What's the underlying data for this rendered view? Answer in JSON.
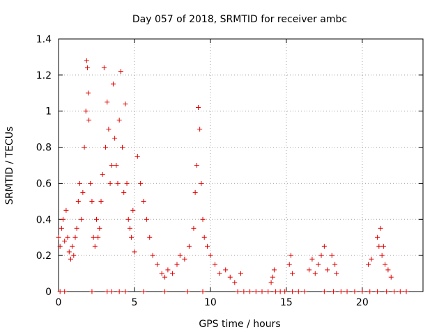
{
  "chart_data": {
    "type": "scatter",
    "title": "Day 057 of 2018, SRMTID for receiver ambc",
    "xlabel": "GPS time / hours",
    "ylabel": "SRMTID / TECUs",
    "xlim": [
      0,
      24
    ],
    "ylim": [
      0,
      1.4
    ],
    "x_ticks": [
      0,
      5,
      10,
      15,
      20
    ],
    "y_ticks": [
      0,
      0.2,
      0.4,
      0.6,
      0.8,
      1,
      1.2,
      1.4
    ],
    "x_tick_labels": [
      "0",
      "5",
      "10",
      "15",
      "20"
    ],
    "y_tick_labels": [
      "0",
      "0.2",
      "0.4",
      "0.6",
      "0.8",
      "1",
      "1.2",
      "1.4"
    ],
    "grid": true,
    "marker": "+",
    "color": "#e00000",
    "series": [
      {
        "name": "SRMTID",
        "x": [
          0.0,
          0.1,
          0.2,
          0.3,
          0.4,
          0.5,
          0.6,
          0.7,
          0.8,
          0.9,
          1.0,
          1.1,
          1.2,
          1.3,
          1.4,
          1.5,
          1.6,
          1.7,
          1.8,
          1.85,
          1.9,
          1.95,
          2.0,
          2.1,
          2.2,
          2.3,
          2.4,
          2.5,
          2.6,
          2.7,
          2.8,
          2.9,
          3.0,
          3.1,
          3.2,
          3.3,
          3.4,
          3.5,
          3.6,
          3.7,
          3.8,
          3.9,
          4.0,
          4.1,
          4.2,
          4.3,
          4.4,
          4.5,
          4.6,
          4.7,
          4.8,
          4.9,
          5.0,
          5.2,
          5.4,
          5.6,
          5.8,
          6.0,
          6.2,
          6.5,
          6.8,
          7.0,
          7.2,
          7.5,
          7.8,
          8.0,
          8.3,
          8.6,
          8.9,
          9.0,
          9.1,
          9.2,
          9.3,
          9.4,
          9.5,
          9.6,
          9.8,
          10.0,
          10.3,
          10.6,
          11.0,
          11.3,
          11.6,
          12.0,
          14.0,
          14.1,
          14.2,
          15.2,
          15.3,
          15.4,
          16.5,
          16.7,
          16.9,
          17.1,
          17.3,
          17.5,
          17.7,
          18.0,
          18.2,
          18.3,
          20.4,
          20.6,
          21.0,
          21.1,
          21.2,
          21.3,
          21.4,
          21.5,
          21.7,
          21.9
        ],
        "y": [
          0.3,
          0.25,
          0.35,
          0.4,
          0.28,
          0.45,
          0.3,
          0.22,
          0.18,
          0.25,
          0.2,
          0.3,
          0.35,
          0.5,
          0.6,
          0.4,
          0.55,
          0.8,
          1.0,
          1.28,
          1.24,
          1.1,
          0.95,
          0.6,
          0.5,
          0.3,
          0.25,
          0.4,
          0.3,
          0.35,
          0.5,
          0.65,
          1.24,
          0.8,
          1.05,
          0.9,
          0.6,
          0.7,
          1.15,
          0.85,
          0.7,
          0.6,
          0.95,
          1.22,
          0.8,
          0.55,
          1.04,
          0.6,
          0.4,
          0.35,
          0.3,
          0.45,
          0.22,
          0.75,
          0.6,
          0.5,
          0.4,
          0.3,
          0.2,
          0.15,
          0.1,
          0.08,
          0.12,
          0.1,
          0.15,
          0.2,
          0.18,
          0.25,
          0.35,
          0.55,
          0.7,
          1.02,
          0.9,
          0.6,
          0.4,
          0.3,
          0.25,
          0.2,
          0.15,
          0.1,
          0.12,
          0.08,
          0.05,
          0.1,
          0.05,
          0.08,
          0.12,
          0.15,
          0.2,
          0.1,
          0.12,
          0.18,
          0.1,
          0.15,
          0.2,
          0.25,
          0.12,
          0.2,
          0.15,
          0.1,
          0.15,
          0.18,
          0.3,
          0.25,
          0.35,
          0.2,
          0.25,
          0.15,
          0.12,
          0.08
        ]
      }
    ],
    "baseline_points_x": [
      0.1,
      0.4,
      2.2,
      3.2,
      3.5,
      4.0,
      4.4,
      5.6,
      7.0,
      8.5,
      9.5,
      11.8,
      12.2,
      12.6,
      13.0,
      13.4,
      13.8,
      14.3,
      14.6,
      14.9,
      15.4,
      15.8,
      16.2,
      17.5,
      18.1,
      18.6,
      19.0,
      19.5,
      20.0,
      20.5,
      21.0,
      21.6,
      22.1,
      22.5,
      22.9
    ]
  }
}
